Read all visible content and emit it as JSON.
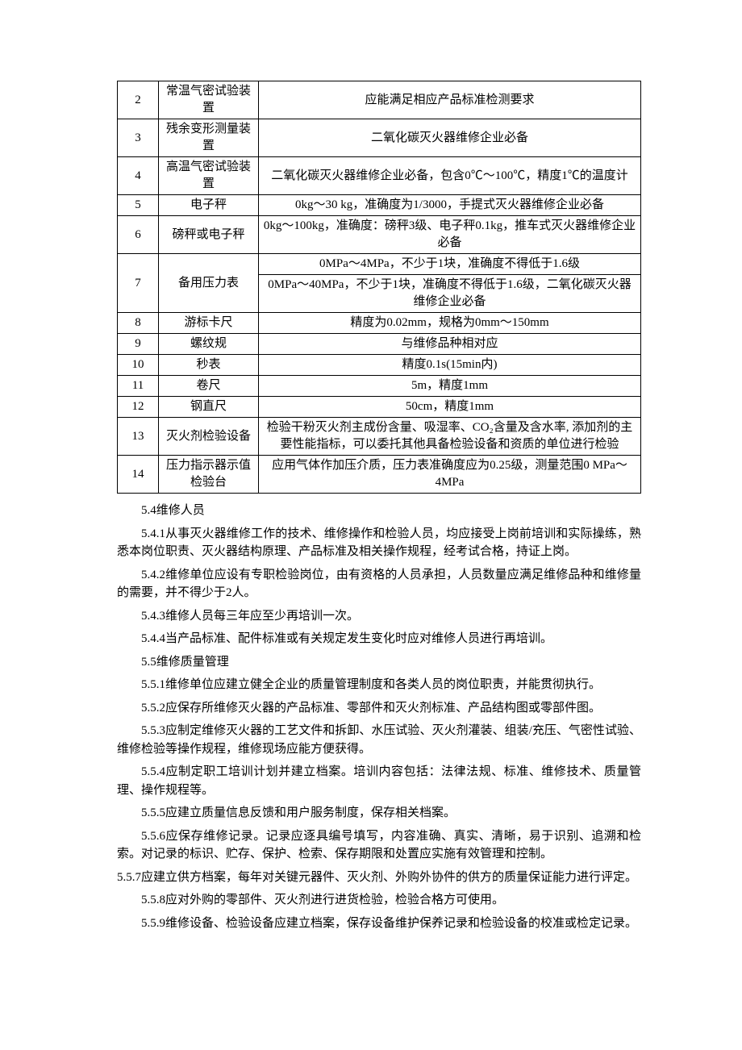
{
  "table": {
    "rows": [
      {
        "num": "2",
        "name": "常温气密试验装置",
        "desc": "应能满足相应产品标准检测要求",
        "rowspan": 1
      },
      {
        "num": "3",
        "name": "残余变形测量装置",
        "desc": "二氧化碳灭火器维修企业必备",
        "rowspan": 1
      },
      {
        "num": "4",
        "name": "高温气密试验装置",
        "desc": "二氧化碳灭火器维修企业必备，包含0℃～100℃，精度1℃的温度计",
        "rowspan": 1
      },
      {
        "num": "5",
        "name": "电子秤",
        "desc": "0kg～30 kg，准确度为1/3000，手提式灭火器维修企业必备",
        "rowspan": 1
      },
      {
        "num": "6",
        "name": "磅秤或电子秤",
        "desc": "0kg～100kg，准确度：磅秤3级、电子秤0.1kg，推车式灭火器维修企业必备",
        "rowspan": 1
      },
      {
        "num": "7",
        "name": "备用压力表",
        "desc_lines": [
          "0MPa～4MPa，不少于1块，准确度不得低于1.6级",
          "0MPa～40MPa，不少于1块，准确度不得低于1.6级，二氧化碳灭火器维修企业必备"
        ],
        "rowspan": 2
      },
      {
        "num": "8",
        "name": "游标卡尺",
        "desc": "精度为0.02mm，规格为0mm～150mm",
        "rowspan": 1
      },
      {
        "num": "9",
        "name": "螺纹规",
        "desc": "与维修品种相对应",
        "rowspan": 1
      },
      {
        "num": "10",
        "name": "秒表",
        "desc": "精度0.1s(15min内)",
        "rowspan": 1
      },
      {
        "num": "11",
        "name": "卷尺",
        "desc": "5m，精度1mm",
        "rowspan": 1
      },
      {
        "num": "12",
        "name": "钢直尺",
        "desc": "50cm，精度1mm",
        "rowspan": 1
      },
      {
        "num": "13",
        "name": "灭火剂检验设备",
        "desc": "检验干粉灭火剂主成份含量、吸湿率、CO₂含量及含水率, 添加剂的主要性能指标，可以委托其他具备检验设备和资质的单位进行检验",
        "rowspan": 1
      },
      {
        "num": "14",
        "name": "压力指示器示值检验台",
        "desc": "应用气体作加压介质，压力表准确度应为0.25级，测量范围0 MPa～4MPa",
        "rowspan": 1
      }
    ]
  },
  "paragraphs": {
    "p1": "5.4维修人员",
    "p2": "5.4.1从事灭火器维修工作的技术、维修操作和检验人员，均应接受上岗前培训和实际操练，熟悉本岗位职责、灭火器结构原理、产品标准及相关操作规程，经考试合格，持证上岗。",
    "p3": "5.4.2维修单位应设有专职检验岗位，由有资格的人员承担，人员数量应满足维修品种和维修量的需要，并不得少于2人。",
    "p4": "5.4.3维修人员每三年应至少再培训一次。",
    "p5": "5.4.4当产品标准、配件标准或有关规定发生变化时应对维修人员进行再培训。",
    "p6": "5.5维修质量管理",
    "p7": "5.5.1维修单位应建立健全企业的质量管理制度和各类人员的岗位职责，并能贯彻执行。",
    "p8": "5.5.2应保存所维修灭火器的产品标准、零部件和灭火剂标准、产品结构图或零部件图。",
    "p9": "5.5.3应制定维修灭火器的工艺文件和拆卸、水压试验、灭火剂灌装、组装/充压、气密性试验、维修检验等操作规程，维修现场应能方便获得。",
    "p10": "5.5.4应制定职工培训计划并建立档案。培训内容包括：法律法规、标准、维修技术、质量管理、操作规程等。",
    "p11": "5.5.5应建立质量信息反馈和用户服务制度，保存相关档案。",
    "p12": "5.5.6应保存维修记录。记录应逐具编号填写，内容准确、真实、清晰，易于识别、追溯和检索。对记录的标识、贮存、保护、检索、保存期限和处置应实施有效管理和控制。",
    "p13": "5.5.7应建立供方档案，每年对关键元器件、灭火剂、外购外协件的供方的质量保证能力进行评定。",
    "p14": "5.5.8应对外购的零部件、灭火剂进行进货检验，检验合格方可使用。",
    "p15": "5.5.9维修设备、检验设备应建立档案，保存设备维护保养记录和检验设备的校准或检定记录。"
  }
}
